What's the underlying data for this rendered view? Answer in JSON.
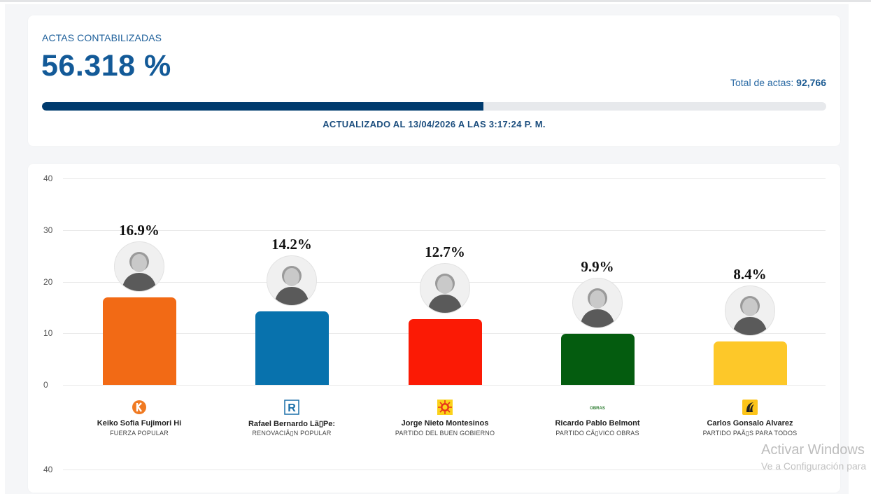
{
  "summary": {
    "label": "ACTAS CONTABILIZADAS",
    "percent_text": "56.318 %",
    "percent_value": 56.318,
    "total_label": "Total de actas:",
    "total_value": "92,766",
    "updated_text": "ACTUALIZADO AL 13/04/2026 A LAS 3:17:24 P. M.",
    "progress_color": "#003b6e",
    "track_color": "#e7e9ec"
  },
  "chart_data": {
    "type": "bar",
    "title": "",
    "xlabel": "",
    "ylabel": "",
    "ylim": [
      0,
      40
    ],
    "yticks": [
      "40",
      "30",
      "20",
      "10",
      "0"
    ],
    "grid": true,
    "categories": [
      "Keiko Sofia Fujimori Hi",
      "Rafael Bernardo LãPe",
      "Jorge Nieto Montesinos",
      "Ricardo Pablo Belmont",
      "Carlos Gonsalo Alvarez"
    ],
    "values": [
      16.9,
      14.2,
      12.7,
      9.9,
      8.4
    ],
    "value_labels": [
      "16.9%",
      "14.2%",
      "12.7%",
      "9.9%",
      "8.4%"
    ],
    "colors": [
      "#f26a15",
      "#0872ad",
      "#fb1a05",
      "#045c0f",
      "#fdc829"
    ]
  },
  "candidates": [
    {
      "name": "Keiko Sofia Fujimori Hi",
      "party": "FUERZA POPULAR",
      "pct": "16.9%",
      "color": "#f26a15",
      "logo": "fuerza-popular-k-logo"
    },
    {
      "name": "Rafael Bernardo Lã▯Pe:",
      "party": "RENOVACIÃ▯N POPULAR",
      "pct": "14.2%",
      "color": "#0872ad",
      "logo": "renovacion-popular-r-logo"
    },
    {
      "name": "Jorge Nieto Montesinos",
      "party": "PARTIDO DEL BUEN GOBIERNO",
      "pct": "12.7%",
      "color": "#fb1a05",
      "logo": "buen-gobierno-sun-logo"
    },
    {
      "name": "Ricardo Pablo Belmont",
      "party": "PARTIDO CÃ▯VICO OBRAS",
      "pct": "9.9%",
      "color": "#045c0f",
      "logo": "obras-logo"
    },
    {
      "name": "Carlos Gonsalo Alvarez",
      "party": "PARTIDO PAÃ▯S PARA TODOS",
      "pct": "8.4%",
      "color": "#fdc829",
      "logo": "pais-para-todos-logo"
    }
  ],
  "second_chart": {
    "first_tick": "40"
  },
  "watermark": {
    "line1": "Activar Windows",
    "line2": "Ve a Configuración para"
  }
}
